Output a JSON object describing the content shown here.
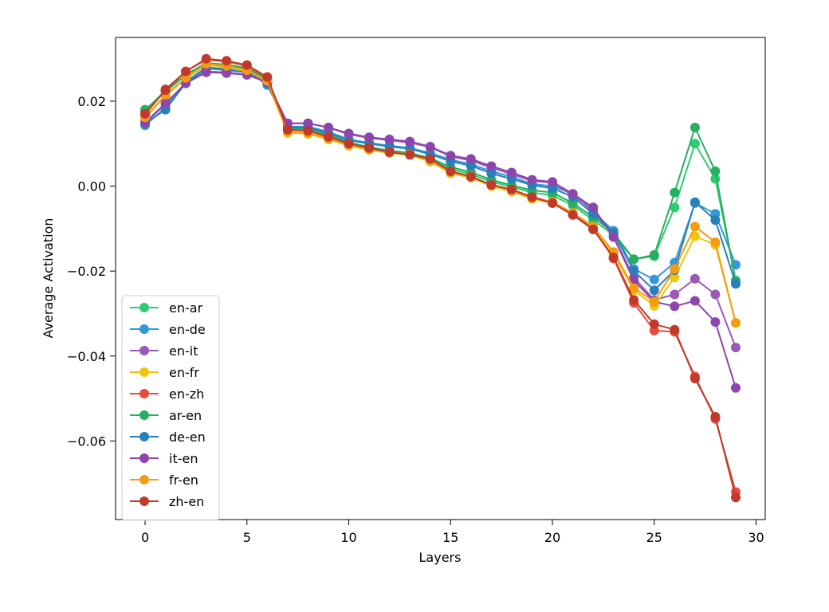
{
  "chart_data": {
    "type": "line",
    "title": "",
    "xlabel": "Layers",
    "ylabel": "Average Activation",
    "xlim": [
      -1.45,
      30.45
    ],
    "ylim": [
      -0.0785,
      0.035
    ],
    "xticks": [
      0,
      5,
      10,
      15,
      20,
      25,
      30
    ],
    "xtick_labels": [
      "0",
      "5",
      "10",
      "15",
      "20",
      "25",
      "30"
    ],
    "yticks": [
      0.02,
      0.0,
      -0.02,
      -0.04,
      -0.06
    ],
    "ytick_labels": [
      "0.02",
      "0.00",
      "−0.02",
      "−0.04",
      "−0.06"
    ],
    "grid": false,
    "legend_position": "lower-left",
    "x": [
      0,
      1,
      2,
      3,
      4,
      5,
      6,
      7,
      8,
      9,
      10,
      11,
      12,
      13,
      14,
      15,
      16,
      17,
      18,
      19,
      20,
      21,
      22,
      23,
      24,
      25,
      26,
      27,
      28,
      29
    ],
    "series": [
      {
        "name": "en-ar",
        "color": "#2ecc71",
        "values": [
          0.0178,
          0.0225,
          0.0262,
          0.0288,
          0.0283,
          0.0275,
          0.0248,
          0.0132,
          0.0133,
          0.012,
          0.0102,
          0.0092,
          0.0083,
          0.0077,
          0.0063,
          0.004,
          0.0028,
          0.001,
          -0.0002,
          -0.0015,
          -0.0022,
          -0.0045,
          -0.008,
          -0.0115,
          -0.0172,
          -0.0165,
          -0.005,
          0.01,
          0.0017,
          -0.0222
        ]
      },
      {
        "name": "en-de",
        "color": "#3498db",
        "values": [
          0.0143,
          0.0185,
          0.0246,
          0.028,
          0.0276,
          0.0272,
          0.0238,
          0.014,
          0.014,
          0.0128,
          0.011,
          0.0102,
          0.0095,
          0.009,
          0.0078,
          0.0062,
          0.0052,
          0.0035,
          0.0022,
          0.0005,
          0.0,
          -0.0018,
          -0.006,
          -0.0105,
          -0.0195,
          -0.022,
          -0.018,
          -0.004,
          -0.0065,
          -0.0185
        ]
      },
      {
        "name": "en-it",
        "color": "#9b59b6",
        "values": [
          0.0148,
          0.0193,
          0.0243,
          0.027,
          0.0268,
          0.0262,
          0.0245,
          0.0148,
          0.0148,
          0.0138,
          0.0122,
          0.0113,
          0.0108,
          0.0102,
          0.0092,
          0.007,
          0.006,
          0.0043,
          0.0028,
          0.0012,
          0.0008,
          -0.0022,
          -0.0055,
          -0.0118,
          -0.0215,
          -0.0268,
          -0.0255,
          -0.0218,
          -0.0255,
          -0.038
        ]
      },
      {
        "name": "en-fr",
        "color": "#f1c40f",
        "values": [
          0.016,
          0.0213,
          0.0253,
          0.0285,
          0.028,
          0.027,
          0.0245,
          0.0125,
          0.0123,
          0.011,
          0.0095,
          0.0085,
          0.0078,
          0.0073,
          0.0058,
          0.003,
          0.002,
          0.0,
          -0.0013,
          -0.003,
          -0.004,
          -0.0065,
          -0.0098,
          -0.016,
          -0.0245,
          -0.0282,
          -0.0215,
          -0.0118,
          -0.0138,
          -0.0322
        ]
      },
      {
        "name": "en-zh",
        "color": "#e74c3c",
        "values": [
          0.0168,
          0.0228,
          0.027,
          0.0298,
          0.0293,
          0.0283,
          0.0255,
          0.0135,
          0.013,
          0.0118,
          0.01,
          0.0088,
          0.008,
          0.0075,
          0.0063,
          0.0035,
          0.0023,
          0.0003,
          -0.0008,
          -0.0025,
          -0.0038,
          -0.0065,
          -0.01,
          -0.017,
          -0.0275,
          -0.034,
          -0.0343,
          -0.0448,
          -0.0548,
          -0.072
        ]
      },
      {
        "name": "ar-en",
        "color": "#27ae60",
        "values": [
          0.018,
          0.0222,
          0.0262,
          0.029,
          0.0286,
          0.0278,
          0.0252,
          0.0135,
          0.0135,
          0.0122,
          0.0103,
          0.0092,
          0.0084,
          0.0078,
          0.0066,
          0.0045,
          0.0033,
          0.0015,
          0.0002,
          -0.001,
          -0.0015,
          -0.004,
          -0.0073,
          -0.011,
          -0.0172,
          -0.0162,
          -0.0015,
          0.0138,
          0.0035,
          -0.0225
        ]
      },
      {
        "name": "de-en",
        "color": "#2980b9",
        "values": [
          0.0147,
          0.018,
          0.0243,
          0.0277,
          0.0273,
          0.0268,
          0.0242,
          0.0138,
          0.0138,
          0.0125,
          0.0108,
          0.01,
          0.0093,
          0.0088,
          0.0075,
          0.0058,
          0.0048,
          0.003,
          0.0017,
          0.0002,
          -0.0005,
          -0.0025,
          -0.0065,
          -0.011,
          -0.02,
          -0.0245,
          -0.0198,
          -0.0038,
          -0.008,
          -0.023
        ]
      },
      {
        "name": "it-en",
        "color": "#8e44ad",
        "values": [
          0.015,
          0.0195,
          0.0242,
          0.0268,
          0.0266,
          0.0262,
          0.0245,
          0.0148,
          0.0148,
          0.0138,
          0.0124,
          0.0115,
          0.011,
          0.0105,
          0.0093,
          0.0072,
          0.0064,
          0.0047,
          0.0032,
          0.0015,
          0.001,
          -0.0018,
          -0.005,
          -0.012,
          -0.0222,
          -0.0272,
          -0.0283,
          -0.027,
          -0.032,
          -0.0475
        ]
      },
      {
        "name": "fr-en",
        "color": "#f39c12",
        "values": [
          0.0162,
          0.0215,
          0.0255,
          0.0288,
          0.0283,
          0.0273,
          0.0248,
          0.0128,
          0.0125,
          0.0112,
          0.0097,
          0.0087,
          0.008,
          0.0075,
          0.006,
          0.0033,
          0.0023,
          0.0002,
          -0.001,
          -0.0028,
          -0.0037,
          -0.0063,
          -0.0095,
          -0.0155,
          -0.024,
          -0.0272,
          -0.0195,
          -0.0095,
          -0.0132,
          -0.0322
        ]
      },
      {
        "name": "zh-en",
        "color": "#c0392b",
        "values": [
          0.017,
          0.0226,
          0.027,
          0.03,
          0.0295,
          0.0285,
          0.0257,
          0.0133,
          0.013,
          0.0116,
          0.01,
          0.009,
          0.008,
          0.0074,
          0.0064,
          0.0035,
          0.0022,
          0.0003,
          -0.0008,
          -0.0026,
          -0.004,
          -0.0068,
          -0.0102,
          -0.0168,
          -0.0268,
          -0.0325,
          -0.0338,
          -0.0453,
          -0.0543,
          -0.0733
        ]
      }
    ]
  }
}
